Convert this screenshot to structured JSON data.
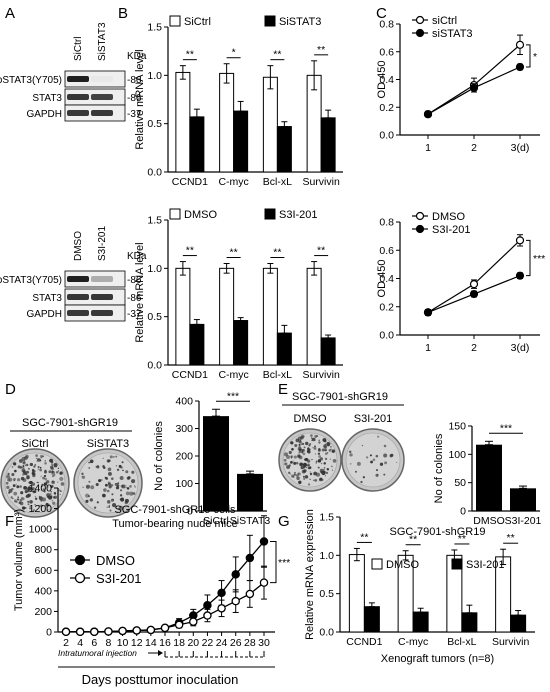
{
  "panel_letters": [
    "A",
    "B",
    "C",
    "D",
    "E",
    "F",
    "G"
  ],
  "blotA1": {
    "lanes": [
      "SiCtrl",
      "SiSTAT3"
    ],
    "kda_label": "KDa",
    "rows": [
      {
        "label": "pSTAT3(Y705)",
        "kda": "-86",
        "bands": [
          0.95,
          0.1
        ]
      },
      {
        "label": "STAT3",
        "kda": "-86",
        "bands": [
          0.85,
          0.8
        ]
      },
      {
        "label": "GAPDH",
        "kda": "-37",
        "bands": [
          0.85,
          0.85
        ]
      }
    ]
  },
  "blotA2": {
    "lanes": [
      "DMSO",
      "S3I-201"
    ],
    "kda_label": "KDa",
    "rows": [
      {
        "label": "pSTAT3(Y705)",
        "kda": "-86",
        "bands": [
          0.95,
          0.35
        ]
      },
      {
        "label": "STAT3",
        "kda": "-86",
        "bands": [
          0.85,
          0.85
        ]
      },
      {
        "label": "GAPDH",
        "kda": "-37",
        "bands": [
          0.85,
          0.85
        ]
      }
    ]
  },
  "photoD": {
    "title": "SGC-7901-shGR19",
    "labels": [
      "SiCtrl",
      "SiSTAT3"
    ]
  },
  "photoE": {
    "title": "SGC-7901-shGR19",
    "labels": [
      "DMSO",
      "S3I-201"
    ]
  },
  "days_label": "Days posttumor inoculation",
  "injection_label": "Intratumoral injection",
  "chart_data": [
    {
      "id": "B1",
      "type": "bar",
      "categories": [
        "CCND1",
        "C-myc",
        "Bcl-xL",
        "Survivin"
      ],
      "series": [
        {
          "name": "SiCtrl",
          "values": [
            1.03,
            1.02,
            0.98,
            1.0
          ],
          "err": [
            0.07,
            0.1,
            0.12,
            0.15
          ]
        },
        {
          "name": "SiSTAT3",
          "values": [
            0.57,
            0.63,
            0.47,
            0.56
          ],
          "err": [
            0.08,
            0.1,
            0.05,
            0.08
          ]
        }
      ],
      "ylabel": "Relative mRNA level",
      "ylim": [
        0,
        1.5
      ],
      "yticks": [
        "0.0",
        "0.5",
        "1.0",
        "1.5"
      ],
      "sig": [
        "**",
        "*",
        "**",
        "**"
      ],
      "legend": "top"
    },
    {
      "id": "B2",
      "type": "bar",
      "categories": [
        "CCND1",
        "C-myc",
        "Bcl-xL",
        "Survivin"
      ],
      "series": [
        {
          "name": "DMSO",
          "values": [
            1.0,
            1.0,
            1.0,
            1.0
          ],
          "err": [
            0.07,
            0.05,
            0.05,
            0.07
          ]
        },
        {
          "name": "S3I-201",
          "values": [
            0.42,
            0.46,
            0.33,
            0.28
          ],
          "err": [
            0.05,
            0.03,
            0.08,
            0.03
          ]
        }
      ],
      "ylabel": "Relative mRNA level",
      "ylim": [
        0,
        1.5
      ],
      "yticks": [
        "0.0",
        "0.5",
        "1.0",
        "1.5"
      ],
      "sig": [
        "**",
        "**",
        "**",
        "**"
      ],
      "legend": "top"
    },
    {
      "id": "C1",
      "type": "line",
      "x": [
        1,
        2,
        3
      ],
      "xticks": [
        "1",
        "2",
        "3(d)"
      ],
      "series": [
        {
          "name": "siCtrl",
          "values": [
            0.15,
            0.36,
            0.65
          ],
          "err": [
            0.02,
            0.05,
            0.07
          ],
          "marker": "open"
        },
        {
          "name": "siSTAT3",
          "values": [
            0.15,
            0.34,
            0.49
          ],
          "err": [
            0.02,
            0.03,
            0.02
          ],
          "marker": "filled"
        }
      ],
      "ylabel": "OD 450",
      "ylim": [
        0,
        0.8
      ],
      "yticks": [
        "0.0",
        "0.2",
        "0.4",
        "0.6",
        "0.8"
      ],
      "sig": "*",
      "legend": "top-left"
    },
    {
      "id": "C2",
      "type": "line",
      "x": [
        1,
        2,
        3
      ],
      "xticks": [
        "1",
        "2",
        "3(d)"
      ],
      "series": [
        {
          "name": "DMSO",
          "values": [
            0.16,
            0.36,
            0.67
          ],
          "err": [
            0.02,
            0.03,
            0.04
          ],
          "marker": "open"
        },
        {
          "name": "S3I-201",
          "values": [
            0.16,
            0.29,
            0.42
          ],
          "err": [
            0.02,
            0.02,
            0.02
          ],
          "marker": "filled"
        }
      ],
      "ylabel": "OD 450",
      "ylim": [
        0,
        0.8
      ],
      "yticks": [
        "0.0",
        "0.2",
        "0.4",
        "0.6",
        "0.8"
      ],
      "sig": "***",
      "legend": "top-left"
    },
    {
      "id": "D",
      "type": "bar",
      "categories": [
        "SiCtrl",
        "SiSTAT3"
      ],
      "values": [
        345,
        135
      ],
      "err": [
        25,
        10
      ],
      "ylabel": "No of colonies",
      "ylim": [
        0,
        400
      ],
      "yticks": [
        "0",
        "100",
        "200",
        "300",
        "400"
      ],
      "sig": "***"
    },
    {
      "id": "E",
      "type": "bar",
      "categories": [
        "DMSO",
        "S3I-201"
      ],
      "values": [
        117,
        40
      ],
      "err": [
        6,
        4
      ],
      "ylabel": "No of colonies",
      "ylim": [
        0,
        150
      ],
      "yticks": [
        "0",
        "50",
        "100",
        "150"
      ],
      "sig": "***"
    },
    {
      "id": "F",
      "type": "line",
      "title": "SGC-7901-shGR19 cells",
      "subtitle": "Tumor-bearing nude mice",
      "x": [
        2,
        4,
        6,
        8,
        10,
        12,
        14,
        16,
        18,
        20,
        22,
        24,
        26,
        28,
        30
      ],
      "xticks": [
        "2",
        "4",
        "6",
        "8",
        "10",
        "12",
        "14",
        "16",
        "18",
        "20",
        "22",
        "24",
        "26",
        "28",
        "30"
      ],
      "series": [
        {
          "name": "DMSO",
          "values": [
            2,
            2,
            2,
            5,
            10,
            15,
            20,
            40,
            90,
            160,
            260,
            380,
            560,
            720,
            880
          ],
          "err": [
            1,
            1,
            1,
            3,
            5,
            8,
            12,
            20,
            40,
            60,
            100,
            120,
            170,
            220,
            250
          ],
          "marker": "filled"
        },
        {
          "name": "S3I-201",
          "values": [
            2,
            2,
            2,
            5,
            10,
            15,
            20,
            40,
            70,
            100,
            160,
            230,
            300,
            370,
            480
          ],
          "err": [
            1,
            1,
            1,
            3,
            5,
            8,
            10,
            18,
            30,
            40,
            60,
            80,
            110,
            130,
            160
          ],
          "marker": "open"
        }
      ],
      "ylabel": "Tumor volume (mm³)",
      "ylim": [
        0,
        1400
      ],
      "yticks": [
        "0",
        "200",
        "400",
        "600",
        "800",
        "1000",
        "1200",
        "1400"
      ],
      "sig": "***",
      "injection_days": [
        16,
        18,
        20,
        22,
        24,
        26,
        28,
        30
      ],
      "legend": "middle-left"
    },
    {
      "id": "G",
      "type": "bar",
      "title": "SGC-7901-shGR19",
      "categories": [
        "CCND1",
        "C-myc",
        "Bcl-xL",
        "Survivin"
      ],
      "series": [
        {
          "name": "DMSO",
          "values": [
            1.01,
            1.0,
            1.0,
            0.98
          ],
          "err": [
            0.08,
            0.06,
            0.07,
            0.1
          ]
        },
        {
          "name": "S3I-201",
          "values": [
            0.33,
            0.26,
            0.25,
            0.22
          ],
          "err": [
            0.05,
            0.05,
            0.1,
            0.06
          ]
        }
      ],
      "ylabel": "Relative mRNA expression",
      "ylim": [
        0,
        1.5
      ],
      "yticks": [
        "0.0",
        "0.5",
        "1.0",
        "1.5"
      ],
      "xlabel": "Xenograft tumors (n=8)",
      "sig": [
        "**",
        "**",
        "**",
        "**"
      ],
      "legend": "top"
    }
  ]
}
